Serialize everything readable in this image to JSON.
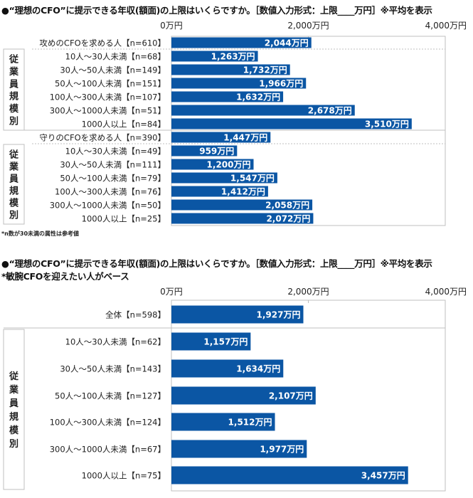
{
  "colors": {
    "bar": "#0b56a4",
    "bar_label": "#ffffff",
    "grid": "#bfbfbf"
  },
  "chart_data": [
    {
      "type": "bar",
      "orientation": "horizontal",
      "title": "●“理想のCFO”に提示できる年収(額面)の上限はいくらですか。［数値入力形式：上限____万円］※平均を表示",
      "note": "*n数が30未満の属性は参考値",
      "xlim": [
        0,
        4000
      ],
      "x_ticks": [
        "0万円",
        "2,000万円",
        "4,000万円"
      ],
      "group_label": "従業員規模別",
      "categories": [
        "攻めのCFOを求める人【n=610】",
        "10人～30人未満【n=68】",
        "30人～50人未満【n=149】",
        "50人～100人未満【n=151】",
        "100人～300人未満【n=107】",
        "300人～1000人未満【n=51】",
        "1000人以上【n=84】",
        "守りのCFOを求める人【n=390】",
        "10人～30人未満【n=49】",
        "30人～50人未満【n=111】",
        "50人～100人未満【n=79】",
        "100人～300人未満【n=76】",
        "300人～1000人未満【n=50】",
        "1000人以上【n=25】"
      ],
      "values": [
        2044,
        1263,
        1732,
        1966,
        1632,
        2678,
        3510,
        1447,
        959,
        1200,
        1547,
        1412,
        2058,
        2072
      ],
      "labels": [
        "2,044万円",
        "1,263万円",
        "1,732万円",
        "1,966万円",
        "1,632万円",
        "2,678万円",
        "3,510万円",
        "1,447万円",
        "959万円",
        "1,200万円",
        "1,547万円",
        "1,412万円",
        "2,058万円",
        "2,072万円"
      ]
    },
    {
      "type": "bar",
      "orientation": "horizontal",
      "title": "●“理想のCFO”に提示できる年収(額面)の上限はいくらですか。［数値入力形式：上限____万円］※平均を表示",
      "subtitle": "*敏腕CFOを迎えたい人がベース",
      "xlim": [
        0,
        4000
      ],
      "x_ticks": [
        "0万円",
        "2,000万円",
        "4,000万円"
      ],
      "group_label": "従業員規模別",
      "categories": [
        "全体【n=598】",
        "10人～30人未満【n=62】",
        "30人～50人未満【n=143】",
        "50人～100人未満【n=127】",
        "100人～300人未満【n=124】",
        "300人～1000人未満【n=67】",
        "1000人以上【n=75】"
      ],
      "values": [
        1927,
        1157,
        1634,
        2107,
        1512,
        1977,
        3457
      ],
      "labels": [
        "1,927万円",
        "1,157万円",
        "1,634万円",
        "2,107万円",
        "1,512万円",
        "1,977万円",
        "3,457万円"
      ]
    }
  ]
}
